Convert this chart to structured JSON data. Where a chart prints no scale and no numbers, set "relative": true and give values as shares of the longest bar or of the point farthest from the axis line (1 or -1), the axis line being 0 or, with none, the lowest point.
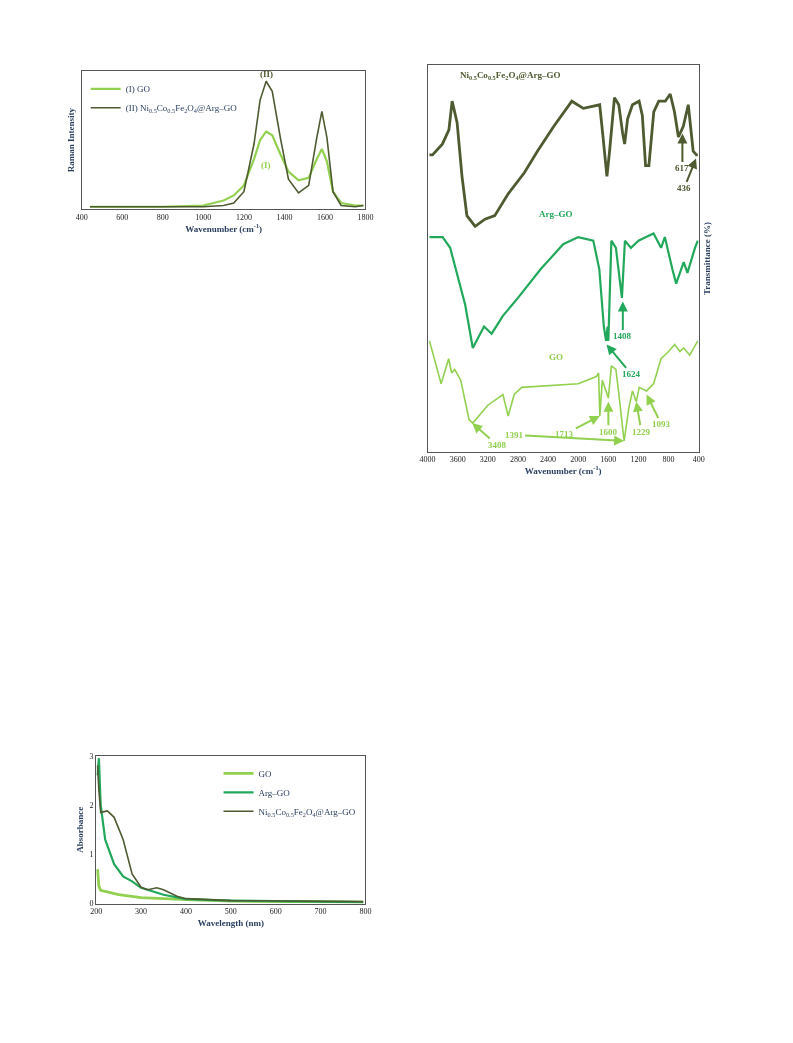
{
  "chart_data": [
    {
      "type": "line",
      "xlabel": "Wavenumber (cm$^{-1}$)",
      "ylabel": "Raman Intensity",
      "relative": true,
      "xlim": [
        400,
        1800
      ],
      "xticks": [
        400,
        600,
        800,
        1000,
        1200,
        1400,
        1600,
        1800
      ],
      "legend": "top left",
      "x": [
        440,
        600,
        800,
        1000,
        1100,
        1150,
        1200,
        1250,
        1280,
        1310,
        1340,
        1380,
        1420,
        1470,
        1520,
        1560,
        1585,
        1610,
        1640,
        1680,
        1750,
        1790
      ],
      "series": [
        {
          "name": "(I) GO",
          "color": "#92d050",
          "values": [
            0,
            0,
            0,
            0.01,
            0.05,
            0.09,
            0.17,
            0.38,
            0.53,
            0.6,
            0.57,
            0.42,
            0.28,
            0.21,
            0.23,
            0.38,
            0.46,
            0.36,
            0.12,
            0.03,
            0.01,
            0.01
          ]
        },
        {
          "name": "(II) Ni$_{0.5}$Co$_{0.5}$Fe$_{2}$O$_{4}$@Arg–GO",
          "color": "#4e5b31",
          "values": [
            0,
            0,
            0,
            0,
            0.01,
            0.03,
            0.12,
            0.5,
            0.85,
            1.0,
            0.92,
            0.55,
            0.22,
            0.11,
            0.17,
            0.55,
            0.76,
            0.55,
            0.12,
            0.01,
            0,
            0.01
          ]
        }
      ],
      "annotations": [
        {
          "text": "(II)",
          "x": 1310,
          "y": 1.0
        },
        "(I)"
      ]
    },
    {
      "type": "line",
      "xlabel": "Wavenumber (cm$^{-1}$)",
      "ylabel": "Transmittance (%)",
      "relative": true,
      "xlim": [
        4000,
        400
      ],
      "xticks": [
        4000,
        3600,
        3200,
        2800,
        2400,
        2000,
        1600,
        1200,
        800,
        400
      ],
      "series": [
        {
          "name": "Ni$_{0.5}$Co$_{0.5}$Fe$_{2}$O$_{4}$@Arg–GO",
          "color": "#4e5b31",
          "x": [
            3975,
            3935,
            3804,
            3717,
            3674,
            3608,
            3543,
            3478,
            3369,
            3238,
            3108,
            2934,
            2716,
            2542,
            2324,
            2085,
            1932,
            1715,
            1671,
            1619,
            1584,
            1519,
            1462,
            1410,
            1384,
            1345,
            1280,
            1192,
            1149,
            1106,
            1062,
            997,
            931,
            844,
            779,
            722,
            670,
            605,
            539,
            474,
            431,
            412
          ],
          "values": [
            0.83,
            0.83,
            0.86,
            0.9,
            0.98,
            0.92,
            0.77,
            0.66,
            0.63,
            0.65,
            0.66,
            0.72,
            0.78,
            0.84,
            0.91,
            0.98,
            0.96,
            0.97,
            0.88,
            0.77,
            0.84,
            0.99,
            0.97,
            0.89,
            0.86,
            0.93,
            0.97,
            0.98,
            0.94,
            0.8,
            0.8,
            0.95,
            0.98,
            0.98,
            1.0,
            0.95,
            0.88,
            0.91,
            0.97,
            0.84,
            0.83,
            0.83
          ]
        },
        {
          "name": "Arg–GO",
          "color": "#22a85a",
          "x": [
            3975,
            3800,
            3700,
            3500,
            3400,
            3250,
            3150,
            3000,
            2800,
            2500,
            2200,
            2000,
            1800,
            1720,
            1660,
            1630,
            1610,
            1600,
            1560,
            1500,
            1420,
            1380,
            1300,
            1200,
            1100,
            1000,
            900,
            850,
            750,
            700,
            600,
            550,
            450,
            412
          ],
          "values": [
            0.6,
            0.6,
            0.57,
            0.41,
            0.29,
            0.35,
            0.33,
            0.38,
            0.43,
            0.51,
            0.58,
            0.6,
            0.59,
            0.51,
            0.35,
            0.31,
            0.35,
            0.31,
            0.59,
            0.57,
            0.43,
            0.59,
            0.57,
            0.59,
            0.6,
            0.61,
            0.57,
            0.6,
            0.51,
            0.47,
            0.53,
            0.5,
            0.57,
            0.59
          ]
        },
        {
          "name": "GO",
          "color": "#92d050",
          "x": [
            3975,
            3820,
            3720,
            3680,
            3640,
            3560,
            3450,
            3400,
            3200,
            3000,
            2930,
            2850,
            2750,
            2000,
            1760,
            1730,
            1713,
            1680,
            1600,
            1560,
            1500,
            1460,
            1391,
            1330,
            1280,
            1229,
            1190,
            1093,
            1000,
            900,
            800,
            720,
            650,
            600,
            520,
            412
          ],
          "values": [
            0.31,
            0.19,
            0.26,
            0.22,
            0.23,
            0.2,
            0.09,
            0.08,
            0.13,
            0.16,
            0.1,
            0.16,
            0.18,
            0.19,
            0.21,
            0.22,
            0.1,
            0.2,
            0.15,
            0.24,
            0.23,
            0.16,
            0.03,
            0.12,
            0.17,
            0.14,
            0.18,
            0.17,
            0.19,
            0.26,
            0.28,
            0.3,
            0.28,
            0.29,
            0.27,
            0.31
          ]
        }
      ],
      "annotations": [
        {
          "text": "617",
          "x": 617,
          "y": 0.89
        },
        {
          "text": "436",
          "x": 436,
          "y": 0.82
        },
        {
          "text": "1408",
          "x": 1408,
          "y": 0.42
        },
        {
          "text": "1624",
          "x": 1624,
          "y": 0.3
        },
        {
          "text": "3408",
          "x": 3408,
          "y": 0.08
        },
        {
          "text": "1713",
          "x": 1713,
          "y": 0.1
        },
        {
          "text": "1600",
          "x": 1600,
          "y": 0.14
        },
        {
          "text": "1391",
          "x": 1391,
          "y": 0.03
        },
        {
          "text": "1229",
          "x": 1229,
          "y": 0.14
        },
        {
          "text": "1093",
          "x": 1093,
          "y": 0.16
        }
      ]
    },
    {
      "type": "line",
      "xlabel": "Wavelength (nm)",
      "ylabel": "Absorbance",
      "xlim": [
        200,
        800
      ],
      "xticks": [
        200,
        300,
        400,
        500,
        600,
        700,
        800
      ],
      "ylim": [
        0,
        3
      ],
      "yticks": [
        0,
        1,
        2,
        3
      ],
      "legend": "top right",
      "series": [
        {
          "name": "GO",
          "color": "#92d050",
          "x": [
            203,
            206,
            210,
            250,
            300,
            400,
            500,
            795
          ],
          "values": [
            0.7,
            0.35,
            0.27,
            0.18,
            0.12,
            0.08,
            0.05,
            0.03
          ]
        },
        {
          "name": "Arg–GO",
          "color": "#22a85a",
          "x": [
            203,
            206,
            210,
            220,
            240,
            260,
            280,
            300,
            350,
            400,
            500,
            795
          ],
          "values": [
            2.6,
            2.95,
            2.0,
            1.3,
            0.8,
            0.55,
            0.45,
            0.32,
            0.18,
            0.09,
            0.06,
            0.03
          ]
        },
        {
          "name": "Ni$_{0.5}$Co$_{0.5}$Fe$_{2}$O$_{4}$@Arg–GO",
          "color": "#4e5b31",
          "x": [
            203,
            206,
            210,
            225,
            240,
            260,
            280,
            300,
            315,
            335,
            350,
            380,
            400,
            500,
            795
          ],
          "values": [
            2.8,
            2.3,
            1.85,
            1.88,
            1.75,
            1.3,
            0.6,
            0.33,
            0.28,
            0.32,
            0.28,
            0.15,
            0.1,
            0.06,
            0.04
          ]
        }
      ]
    }
  ]
}
